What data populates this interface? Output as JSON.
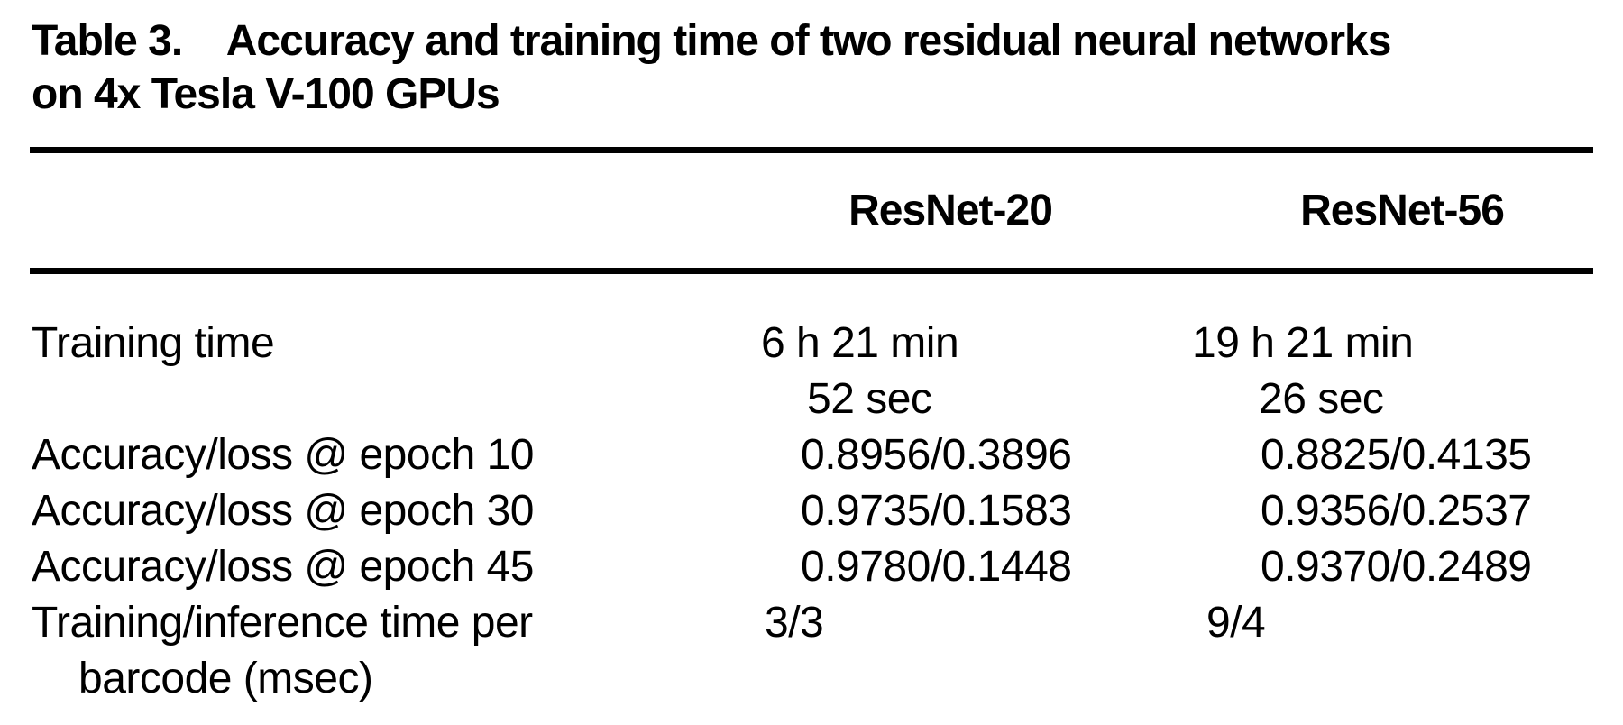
{
  "caption": {
    "label": "Table 3.",
    "line1": "Accuracy and training time of two residual neural networks",
    "line2": "on 4x Tesla V-100 GPUs"
  },
  "columns": [
    "ResNet-20",
    "ResNet-56"
  ],
  "rows": [
    {
      "label": "Training time",
      "resnet20_lines": [
        "6 h 21 min",
        "52 sec"
      ],
      "resnet56_lines": [
        "19 h 21 min",
        "26 sec"
      ]
    },
    {
      "label": "Accuracy/loss @ epoch 10",
      "resnet20": "0.8956/0.3896",
      "resnet56": "0.8825/0.4135"
    },
    {
      "label": "Accuracy/loss @ epoch 30",
      "resnet20": "0.9735/0.1583",
      "resnet56": "0.9356/0.2537"
    },
    {
      "label": "Accuracy/loss @ epoch 45",
      "resnet20": "0.9780/0.1448",
      "resnet56": "0.9370/0.2489"
    },
    {
      "label_lines": [
        "Training/inference time per",
        "barcode (msec)"
      ],
      "resnet20": "3/3",
      "resnet56": "9/4"
    }
  ],
  "colors": {
    "background": "#ffffff",
    "text": "#000000",
    "rule": "#000000"
  }
}
